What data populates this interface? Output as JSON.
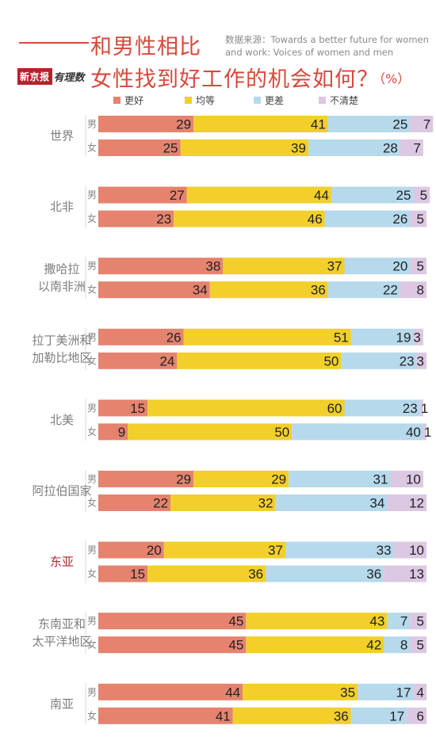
{
  "header": {
    "title_line1": "和男性相比",
    "title_line2": "女性找到好工作的机会如何？",
    "unit": "（%）",
    "source": "数据来源：Towards a better future for women and work: Voices of women and men",
    "logo_a": "新京报",
    "logo_b": "有理数"
  },
  "colors": {
    "better": "#e5836f",
    "equal": "#f2cf2a",
    "worse": "#b6d9ec",
    "unsure": "#dcc8e3",
    "title": "#d8483c",
    "highlight": "#b32530",
    "label": "#7d7d7d"
  },
  "chart_data": {
    "type": "bar",
    "stacked": true,
    "orientation": "horizontal",
    "legend_position": "top",
    "series_names": [
      "更好",
      "均等",
      "更差",
      "不清楚"
    ],
    "gender_labels": [
      "男",
      "女"
    ],
    "groups": [
      {
        "region": "世界",
        "highlight": false,
        "rows": [
          {
            "gender": "男",
            "values": [
              29,
              41,
              25,
              7
            ]
          },
          {
            "gender": "女",
            "values": [
              25,
              39,
              28,
              7
            ]
          }
        ]
      },
      {
        "region": "北非",
        "highlight": false,
        "rows": [
          {
            "gender": "男",
            "values": [
              27,
              44,
              25,
              5
            ]
          },
          {
            "gender": "女",
            "values": [
              23,
              46,
              26,
              5
            ]
          }
        ]
      },
      {
        "region": "撒哈拉\n以南非洲",
        "highlight": false,
        "rows": [
          {
            "gender": "男",
            "values": [
              38,
              37,
              20,
              5
            ]
          },
          {
            "gender": "女",
            "values": [
              34,
              36,
              22,
              8
            ]
          }
        ]
      },
      {
        "region": "拉丁美洲和\n加勒比地区",
        "highlight": false,
        "rows": [
          {
            "gender": "男",
            "values": [
              26,
              51,
              19,
              3
            ]
          },
          {
            "gender": "女",
            "values": [
              24,
              50,
              23,
              3
            ]
          }
        ]
      },
      {
        "region": "北美",
        "highlight": false,
        "rows": [
          {
            "gender": "男",
            "values": [
              15,
              60,
              23,
              1
            ]
          },
          {
            "gender": "女",
            "values": [
              9,
              50,
              40,
              1
            ]
          }
        ]
      },
      {
        "region": "阿拉伯国家",
        "highlight": false,
        "rows": [
          {
            "gender": "男",
            "values": [
              29,
              29,
              31,
              10
            ]
          },
          {
            "gender": "女",
            "values": [
              22,
              32,
              34,
              12
            ]
          }
        ]
      },
      {
        "region": "东亚",
        "highlight": true,
        "rows": [
          {
            "gender": "男",
            "values": [
              20,
              37,
              33,
              10
            ]
          },
          {
            "gender": "女",
            "values": [
              15,
              36,
              36,
              13
            ]
          }
        ]
      },
      {
        "region": "东南亚和\n太平洋地区",
        "highlight": false,
        "rows": [
          {
            "gender": "男",
            "values": [
              45,
              43,
              7,
              5
            ]
          },
          {
            "gender": "女",
            "values": [
              45,
              42,
              8,
              5
            ]
          }
        ]
      },
      {
        "region": "南亚",
        "highlight": false,
        "rows": [
          {
            "gender": "男",
            "values": [
              44,
              35,
              17,
              4
            ]
          },
          {
            "gender": "女",
            "values": [
              41,
              36,
              17,
              6
            ]
          }
        ]
      }
    ]
  }
}
